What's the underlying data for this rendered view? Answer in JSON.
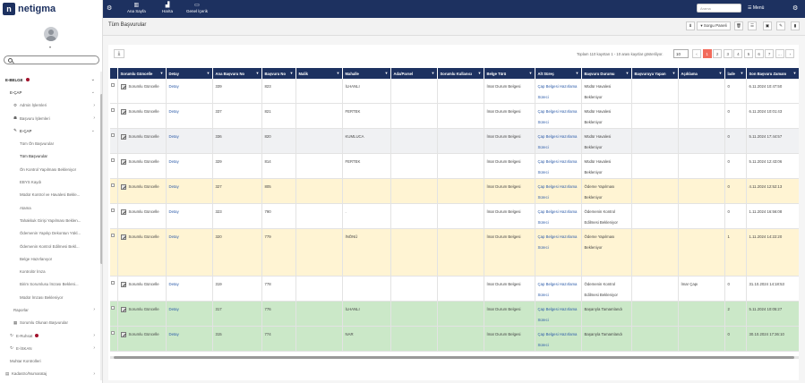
{
  "brand": {
    "logo_letter": "n",
    "name": "netigma"
  },
  "search": {
    "placeholder": "",
    "value": ""
  },
  "sidebar": {
    "items": [
      {
        "label": "E-BELGE",
        "level": "l0",
        "bold": true,
        "dot": true,
        "chev": "⌄"
      },
      {
        "label": "E-ÇAP",
        "level": "l1",
        "bold": false,
        "chev": "⌄",
        "active": true
      },
      {
        "label": "Admin İşlemleri",
        "level": "l2",
        "icon": "⚙",
        "chev": "›"
      },
      {
        "label": "Başvuru İşlemleri",
        "level": "l2",
        "icon": "☗",
        "chev": "›"
      },
      {
        "label": "E-ÇAP",
        "level": "l2",
        "icon": "✎",
        "chev": "⌄",
        "active": true
      },
      {
        "label": "Tüm Ön Başvurular",
        "level": "l3"
      },
      {
        "label": "Tüm Başvurular",
        "level": "l3",
        "active": true
      },
      {
        "label": "Ön Kontrol Yapılması Bekleniyor",
        "level": "l3"
      },
      {
        "label": "EBYS Kaydı",
        "level": "l3"
      },
      {
        "label": "Müdür Kontrol ve Havalesi Bekle...",
        "level": "l3"
      },
      {
        "label": "Atama",
        "level": "l3"
      },
      {
        "label": "Tahakkuk Girişi Yapılması Beklen...",
        "level": "l3"
      },
      {
        "label": "Ödemenin Yapılıp Dekontun Yükl...",
        "level": "l3"
      },
      {
        "label": "Ödemenin Kontrol Edilmesi Bekl...",
        "level": "l3"
      },
      {
        "label": "Belge Hazırlanıyor",
        "level": "l3"
      },
      {
        "label": "Kontrolör İmza",
        "level": "l3"
      },
      {
        "label": "Birim Sorumlusu İmzası Bekleni...",
        "level": "l3"
      },
      {
        "label": "Müdür İmzası Bekleniyor",
        "level": "l3"
      },
      {
        "label": "Raporlar",
        "level": "l2",
        "chev": "›"
      },
      {
        "label": "Sorumlu Olunan Başvurular",
        "level": "l2",
        "icon": "▦"
      },
      {
        "label": "E-Ruhsat",
        "level": "l1",
        "icon": "↻",
        "dot": true,
        "chev": "›"
      },
      {
        "label": "E-İSKAN",
        "level": "l1",
        "icon": "↻",
        "chev": "›"
      },
      {
        "label": "Muhtar Kontrolleri",
        "level": "l1"
      },
      {
        "label": "Kadastro/Numarataj",
        "level": "l0",
        "icon": "▤",
        "chev": "›"
      }
    ]
  },
  "topbar": {
    "buttons": [
      {
        "label": "Ana Sayfa",
        "icon": "▥",
        "x": 27
      },
      {
        "label": "Harita",
        "icon": "▟",
        "x": 66
      },
      {
        "label": "Genel İçerik",
        "icon": "▭",
        "x": 93
      }
    ],
    "search_placeholder": "Arama",
    "menu_label": "☰ Menü"
  },
  "header": {
    "title": "Tüm Başvurular",
    "sorgu_label": "▾ Sorgu Paneli"
  },
  "pager": {
    "info": "Toplam 110 kayıttan 1 - 10 arası kayıtlar gösteriliyor.",
    "page_size": "10",
    "pages": [
      "‹",
      "1",
      "2",
      "3",
      "4",
      "5",
      "6",
      "7",
      "…",
      "›"
    ],
    "active_page": "1"
  },
  "table": {
    "columns": [
      "",
      "Sorumlu Güncelle",
      "Detay",
      "Ana Başvuru No",
      "Başvuru No",
      "Malik",
      "Mahalle",
      "Ada/Parsel",
      "Sorumlu Kullanıcı",
      "Belge Türü",
      "Alt Süreç",
      "Başvuru Durumu",
      "Başvuruyu Yapan",
      "Açıklama",
      "İade",
      "Son Başvuru Zamanı"
    ],
    "rows": [
      {
        "style": "",
        "sorumlu": "Sorumlu Güncelle",
        "detay": "Detay",
        "ana": "339",
        "bno": "823",
        "malik": "",
        "mahalle": "İLHANLI",
        "ada": "",
        "kull": "",
        "belge": "İmar Durum Belgesi",
        "alt": "Çap Belgesi Hazırlama Süreci",
        "durum": "Müdür Havalesi Bekleniyor",
        "yapan": "",
        "aciklama": "",
        "iade": "0",
        "zaman": "6.11.2024 10:47:50"
      },
      {
        "style": "",
        "sorumlu": "Sorumlu Güncelle",
        "detay": "Detay",
        "ana": "337",
        "bno": "821",
        "malik": "",
        "mahalle": "FERTEK",
        "ada": "",
        "kull": "",
        "belge": "İmar Durum Belgesi",
        "alt": "Çap Belgesi Hazırlama Süreci",
        "durum": "Müdür Havalesi Bekleniyor",
        "yapan": "",
        "aciklama": "",
        "iade": "0",
        "zaman": "6.11.2024 10:01:43"
      },
      {
        "style": "gray",
        "sorumlu": "Sorumlu Güncelle",
        "detay": "Detay",
        "ana": "336",
        "bno": "820",
        "malik": "",
        "mahalle": "KUMLUCA",
        "ada": "",
        "kull": "",
        "belge": "İmar Durum Belgesi",
        "alt": "Çap Belgesi Hazırlama Süreci",
        "durum": "Müdür Havalesi Bekleniyor",
        "yapan": "",
        "aciklama": "",
        "iade": "0",
        "zaman": "5.11.2024 17:44:57"
      },
      {
        "style": "",
        "sorumlu": "Sorumlu Güncelle",
        "detay": "Detay",
        "ana": "329",
        "bno": "814",
        "malik": "",
        "mahalle": "FERTEK",
        "ada": "",
        "kull": "",
        "belge": "İmar Durum Belgesi",
        "alt": "Çap Belgesi Hazırlama Süreci",
        "durum": "Müdür Havalesi Bekleniyor",
        "yapan": "",
        "aciklama": "",
        "iade": "0",
        "zaman": "5.11.2024 12:43:06"
      },
      {
        "style": "yellow",
        "sorumlu": "Sorumlu Güncelle",
        "detay": "Detay",
        "ana": "327",
        "bno": "805",
        "malik": "",
        "mahalle": "",
        "ada": "",
        "kull": "",
        "belge": "İmar Durum Belgesi",
        "alt": "Çap Belgesi Hazırlama Süreci",
        "durum": "Ödeme Yapılması Bekleniyor",
        "yapan": "",
        "aciklama": "",
        "iade": "0",
        "zaman": "4.11.2024 12:52:13"
      },
      {
        "style": "",
        "sorumlu": "Sorumlu Güncelle",
        "detay": "Detay",
        "ana": "323",
        "bno": "790",
        "malik": "",
        "mahalle": ".",
        "ada": "",
        "kull": "",
        "belge": "İmar Durum Belgesi",
        "alt": "Çap Belgesi Hazırlama Süreci",
        "durum": "Ödemenin Kontrol Edilmesi Bekleniyor",
        "yapan": "",
        "aciklama": "",
        "iade": "0",
        "zaman": "1.11.2024 16:56:08"
      },
      {
        "style": "yellow tall",
        "sorumlu": "Sorumlu Güncelle",
        "detay": "Detay",
        "ana": "320",
        "bno": "779",
        "malik": "",
        "mahalle": "İNÖNÜ",
        "ada": "",
        "kull": "",
        "belge": "İmar Durum Belgesi",
        "alt": "Çap Belgesi Hazırlama Süreci",
        "durum": "Ödeme Yapılması Bekleniyor",
        "yapan": "",
        "aciklama": "",
        "iade": "1",
        "zaman": "1.11.2024 14:22:20"
      },
      {
        "style": "",
        "sorumlu": "Sorumlu Güncelle",
        "detay": "Detay",
        "ana": "319",
        "bno": "778",
        "malik": "",
        "mahalle": "",
        "ada": "",
        "kull": "",
        "belge": "İmar Durum Belgesi",
        "alt": "Çap Belgesi Hazırlama Süreci",
        "durum": "Ödemenin Kontrol Edilmesi Bekleniyor",
        "yapan": "",
        "aciklama": "İmar Çapı",
        "iade": "0",
        "zaman": "31.10.2024 14:18:53"
      },
      {
        "style": "green",
        "sorumlu": "Sorumlu Güncelle",
        "detay": "Detay",
        "ana": "317",
        "bno": "776",
        "malik": "",
        "mahalle": "İLHANLI",
        "ada": "",
        "kull": "",
        "belge": "İmar Durum Belgesi",
        "alt": "Çap Belgesi Hazırlama Süreci",
        "durum": "Başarıyla Tamamlandı",
        "yapan": "",
        "aciklama": "",
        "iade": "2",
        "zaman": "5.11.2024 10:05:27"
      },
      {
        "style": "green",
        "sorumlu": "Sorumlu Güncelle",
        "detay": "Detay",
        "ana": "315",
        "bno": "774",
        "malik": "",
        "mahalle": "NAR",
        "ada": "",
        "kull": "",
        "belge": "İmar Durum Belgesi",
        "alt": "Çap Belgesi Hazırlama Süreci",
        "durum": "Başarıyla Tamamlandı",
        "yapan": "",
        "aciklama": "",
        "iade": "0",
        "zaman": "30.10.2024 17:36:10"
      }
    ]
  }
}
